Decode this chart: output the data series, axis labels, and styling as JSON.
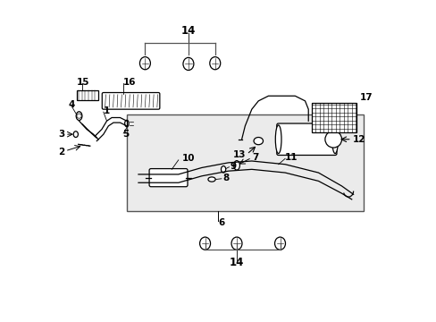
{
  "bg_color": "#f0f0f0",
  "white": "#ffffff",
  "black": "#000000",
  "gray": "#888888",
  "light_gray": "#e8e8e8",
  "box_bg": "#ebebeb",
  "dark_gray": "#555555"
}
